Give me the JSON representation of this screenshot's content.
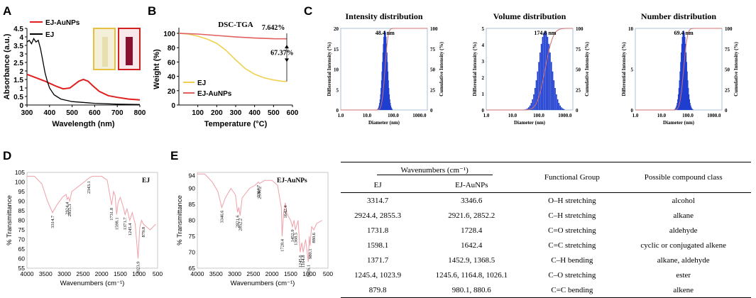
{
  "panels": [
    "A",
    "B",
    "C",
    "D",
    "E"
  ],
  "colors": {
    "ej": "#000000",
    "au": "#e02020",
    "ej_tga": "#f0d050",
    "au_tga": "#e06060",
    "bars": "#1f3fd0",
    "cum": "#d07070",
    "ftir": "#f0a0a8",
    "vial_light_border": "#e8c040",
    "vial_dark_border": "#d02020"
  },
  "chart_data": [
    {
      "id": "A",
      "type": "line",
      "xlabel": "Wavelength (nm)",
      "ylabel": "Absorbance (a.u.)",
      "xlim": [
        300,
        800
      ],
      "ylim": [
        0,
        4.5
      ],
      "xticks": [
        300,
        400,
        500,
        600,
        700,
        800
      ],
      "yticks": [
        0,
        0.5,
        1,
        1.5,
        2,
        2.5,
        3,
        3.5,
        4,
        4.5
      ],
      "ytick_labels": [
        "0",
        "0.5",
        "1",
        "1.5",
        "2",
        "2.5",
        "3",
        "3.5",
        "4",
        "4.5"
      ],
      "legend": [
        "EJ-AuNPs",
        "EJ"
      ],
      "series": [
        {
          "name": "EJ-AuNPs",
          "x": [
            300,
            320,
            350,
            380,
            400,
            430,
            460,
            490,
            510,
            530,
            550,
            570,
            590,
            620,
            660,
            700,
            750,
            800
          ],
          "y": [
            1.8,
            1.7,
            1.55,
            1.4,
            1.28,
            1.1,
            0.95,
            1.0,
            1.2,
            1.4,
            1.5,
            1.4,
            1.15,
            0.8,
            0.55,
            0.45,
            0.35,
            0.3
          ]
        },
        {
          "name": "EJ",
          "x": [
            300,
            310,
            320,
            330,
            340,
            350,
            360,
            370,
            380,
            390,
            400,
            420,
            450,
            500,
            600,
            700,
            800
          ],
          "y": [
            3.7,
            3.8,
            3.6,
            3.9,
            3.7,
            3.8,
            3.3,
            2.6,
            1.9,
            1.4,
            1.0,
            0.6,
            0.35,
            0.2,
            0.1,
            0.05,
            0.03
          ]
        }
      ]
    },
    {
      "id": "B",
      "type": "line",
      "title": "DSC-TGA",
      "xlabel": "Temperature (°C)",
      "ylabel": "Weight (%)",
      "xlim": [
        0,
        600
      ],
      "ylim": [
        0,
        100
      ],
      "xticks": [
        100,
        200,
        300,
        400,
        500,
        600
      ],
      "yticks": [
        0,
        20,
        40,
        60,
        80,
        100
      ],
      "legend": [
        "EJ",
        "EJ-AuNPs"
      ],
      "annotations": [
        "7.642%",
        "67.37%"
      ],
      "series": [
        {
          "name": "EJ",
          "x": [
            0,
            50,
            100,
            150,
            200,
            250,
            300,
            350,
            400,
            450,
            500,
            550,
            570
          ],
          "y": [
            100,
            99,
            96,
            92,
            86,
            76,
            63,
            51,
            43,
            38,
            35,
            33,
            33
          ]
        },
        {
          "name": "EJ-AuNPs",
          "x": [
            0,
            100,
            200,
            300,
            400,
            500,
            570
          ],
          "y": [
            100,
            99,
            97,
            95,
            93.5,
            92.5,
            92.36
          ]
        }
      ]
    },
    {
      "id": "C",
      "type": "bar",
      "xlabel": "Diameter (nm)",
      "ylabel_left": "Differential Intensity (%)",
      "xtick_labels": [
        "1.0",
        "10.0",
        "100.0",
        "1000.0"
      ],
      "subplots": [
        {
          "title": "Intensity distribution",
          "peak_label": "48.4 nm",
          "peak": 48.4,
          "sigma": 0.09,
          "ymax": 20,
          "yticks_left": [
            0,
            5,
            10,
            15,
            20
          ],
          "ylabel_left": "Differential Intensity (%)",
          "ylabel_right": "Cumulative Intensity (%)"
        },
        {
          "title": "Volume distribution",
          "peak_label": "174.8 nm",
          "peak": 174.8,
          "sigma": 0.24,
          "ymax": 5,
          "yticks_left": [
            0,
            1,
            2,
            3,
            4,
            5
          ],
          "ylabel_left": "Differential Intensity (%)",
          "ylabel_right": "Cumulative Intensity (%)"
        },
        {
          "title": "Number distribution",
          "peak_label": "69.4 nm",
          "peak": 69.4,
          "sigma": 0.11,
          "ymax": 10,
          "yticks_left": [
            0,
            5,
            10
          ],
          "ylabel_left": "Differential Intensity (%)",
          "ylabel_right": "Cumulative Intensity (%)"
        }
      ],
      "yticks_right": [
        0,
        25,
        50,
        75,
        100
      ]
    },
    {
      "id": "D",
      "type": "line",
      "label": "EJ",
      "xlabel": "Wavenumbers  (cm⁻¹)",
      "ylabel": "% Transmittance",
      "xlim": [
        4000,
        500
      ],
      "ylim": [
        55,
        105
      ],
      "xticks": [
        4000,
        3500,
        3000,
        2500,
        2000,
        1500,
        1000,
        500
      ],
      "yticks": [
        55,
        60,
        65,
        70,
        75,
        80,
        85,
        90,
        95,
        100,
        105
      ],
      "peaks": [
        {
          "x": 3314.7,
          "label": "3314.7"
        },
        {
          "x": 2924.4,
          "label": "2924.4"
        },
        {
          "x": 2855.3,
          "label": "2855.3"
        },
        {
          "x": 2343.1,
          "label": "2343.1"
        },
        {
          "x": 1731.8,
          "label": "1731.8"
        },
        {
          "x": 1598.1,
          "label": "1598.1"
        },
        {
          "x": 1371.7,
          "label": "1371.7"
        },
        {
          "x": 1245.4,
          "label": "1245.4"
        },
        {
          "x": 1023.9,
          "label": "1023.9"
        },
        {
          "x": 879.8,
          "label": "879.8"
        }
      ],
      "x": [
        4000,
        3800,
        3600,
        3450,
        3314.7,
        3200,
        3050,
        2950,
        2924.4,
        2890,
        2855.3,
        2800,
        2600,
        2400,
        2343.1,
        2250,
        2000,
        1850,
        1731.8,
        1680,
        1640,
        1598.1,
        1560,
        1500,
        1420,
        1371.7,
        1320,
        1245.4,
        1180,
        1100,
        1023.9,
        980,
        930,
        879.8,
        820,
        700,
        550
      ],
      "y": [
        103,
        103,
        99,
        90,
        84,
        88,
        92,
        93.5,
        91,
        92,
        90,
        95,
        98,
        101,
        102,
        103,
        103,
        101,
        88,
        95,
        93,
        83,
        89,
        92,
        87,
        83,
        86,
        80,
        84,
        78,
        60,
        76,
        80,
        78,
        77,
        75,
        78
      ]
    },
    {
      "id": "E",
      "type": "line",
      "label": "EJ-AuNPs",
      "xlabel": "Wavenumbers  (cm⁻¹)",
      "ylabel": "% Transmittance",
      "xlim": [
        4000,
        500
      ],
      "ylim": [
        65,
        95
      ],
      "xticks": [
        4000,
        3500,
        3000,
        2500,
        2000,
        1500,
        1000,
        500
      ],
      "yticks": [
        65,
        70,
        75,
        80,
        85,
        90,
        94
      ],
      "peaks": [
        {
          "x": 3346.6,
          "label": "3346.6"
        },
        {
          "x": 2921.6,
          "label": "2921.6"
        },
        {
          "x": 2852.2,
          "label": "2852.2"
        },
        {
          "x": 2364.7,
          "label": "2364.7"
        },
        {
          "x": 2336.2,
          "label": "2336.2"
        },
        {
          "x": 1728.4,
          "label": "1728.4"
        },
        {
          "x": 1642.4,
          "label": "1642.4"
        },
        {
          "x": 1452.9,
          "label": "1452.9"
        },
        {
          "x": 1368.5,
          "label": "1368.5"
        },
        {
          "x": 1245.6,
          "label": "1245.6"
        },
        {
          "x": 1164.8,
          "label": "1164.8"
        },
        {
          "x": 1026.1,
          "label": "1026.1"
        },
        {
          "x": 980.1,
          "label": "980.1"
        },
        {
          "x": 880.6,
          "label": "880.6"
        }
      ],
      "x": [
        4000,
        3800,
        3600,
        3450,
        3346.6,
        3250,
        3100,
        2980,
        2921.6,
        2890,
        2852.2,
        2800,
        2600,
        2450,
        2364.7,
        2336.2,
        2200,
        2000,
        1850,
        1750,
        1728.4,
        1690,
        1642.4,
        1600,
        1500,
        1452.9,
        1410,
        1368.5,
        1300,
        1245.6,
        1200,
        1164.8,
        1100,
        1026.1,
        1000,
        980.1,
        940,
        880.6,
        800,
        650
      ],
      "y": [
        94.5,
        94.5,
        92,
        89,
        84,
        87,
        90,
        88,
        82.5,
        84,
        81.5,
        87,
        90,
        91,
        92,
        91.5,
        92.5,
        92.5,
        91,
        84,
        75,
        82,
        85.5,
        82,
        80,
        78,
        80,
        77,
        80,
        70,
        73,
        70,
        74,
        67,
        75,
        72,
        78,
        77,
        79,
        80
      ]
    }
  ],
  "table": {
    "header_group": "Wavenumbers (cm⁻¹)",
    "columns": [
      "EJ",
      "EJ-AuNPs",
      "Functional Group",
      "Possible compound class"
    ],
    "rows": [
      [
        "3314.7",
        "3346.6",
        "O–H stretching",
        "alcohol"
      ],
      [
        "2924.4, 2855.3",
        "2921.6, 2852.2",
        "C–H stretching",
        "alkane"
      ],
      [
        "1731.8",
        "1728.4",
        "C=O stretching",
        "aldehyde"
      ],
      [
        "1598.1",
        "1642.4",
        "C=C stretching",
        "cyclic or conjugated alkene"
      ],
      [
        "1371.7",
        "1452.9, 1368.5",
        "C–H bending",
        "alkane, aldehyde"
      ],
      [
        "1245.4, 1023.9",
        "1245.6, 1164.8, 1026.1",
        "C–O stretching",
        "ester"
      ],
      [
        "879.8",
        "980.1, 880.6",
        "C=C bending",
        "alkene"
      ]
    ]
  }
}
